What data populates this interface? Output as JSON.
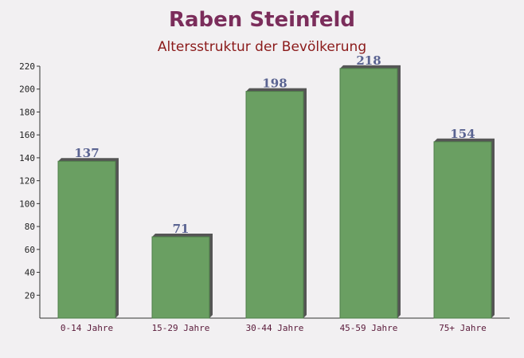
{
  "chart_data": {
    "type": "bar",
    "title": "Raben Steinfeld",
    "subtitle": "Altersstruktur der Bevölkerung",
    "categories": [
      "0-14 Jahre",
      "15-29 Jahre",
      "30-44 Jahre",
      "45-59 Jahre",
      "75+ Jahre"
    ],
    "values": [
      137,
      71,
      198,
      218,
      154
    ],
    "color": "#6a9f62",
    "ylim": [
      0,
      220
    ],
    "yticks": [
      20,
      40,
      60,
      80,
      100,
      120,
      140,
      160,
      180,
      200,
      220
    ]
  }
}
